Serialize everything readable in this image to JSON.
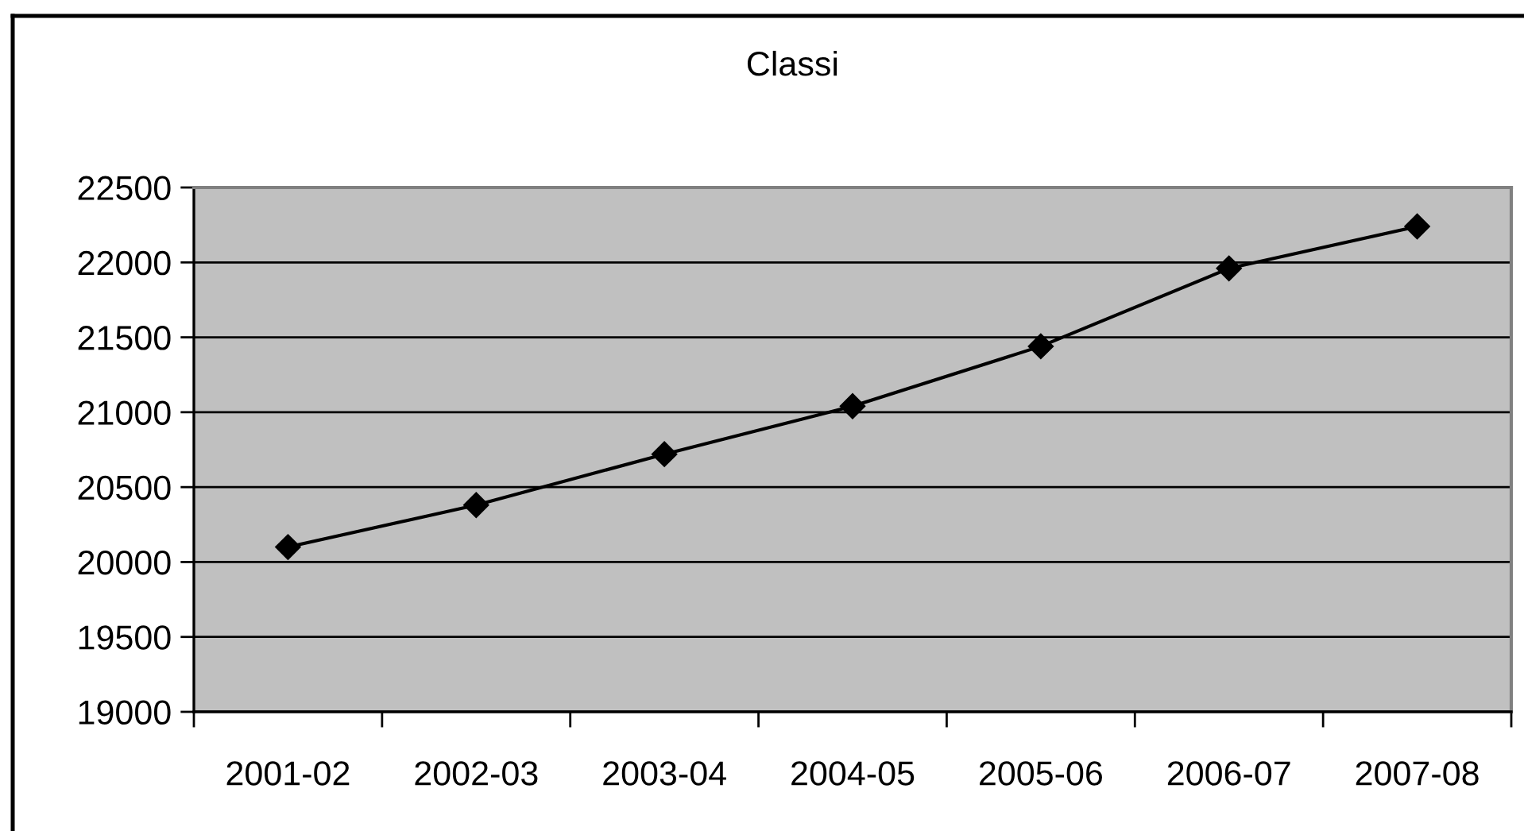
{
  "chart_data": {
    "type": "line",
    "title": "Classi",
    "categories": [
      "2001-02",
      "2002-03",
      "2003-04",
      "2004-05",
      "2005-06",
      "2006-07",
      "2007-08"
    ],
    "values": [
      20100,
      20380,
      20720,
      21040,
      21440,
      21960,
      22240
    ],
    "color": "#000000",
    "ylim": [
      19000,
      22500
    ],
    "yticks": [
      19000,
      19500,
      20000,
      20500,
      21000,
      21500,
      22000,
      22500
    ],
    "grid": "y",
    "marker": "diamond",
    "line_style": "solid"
  }
}
